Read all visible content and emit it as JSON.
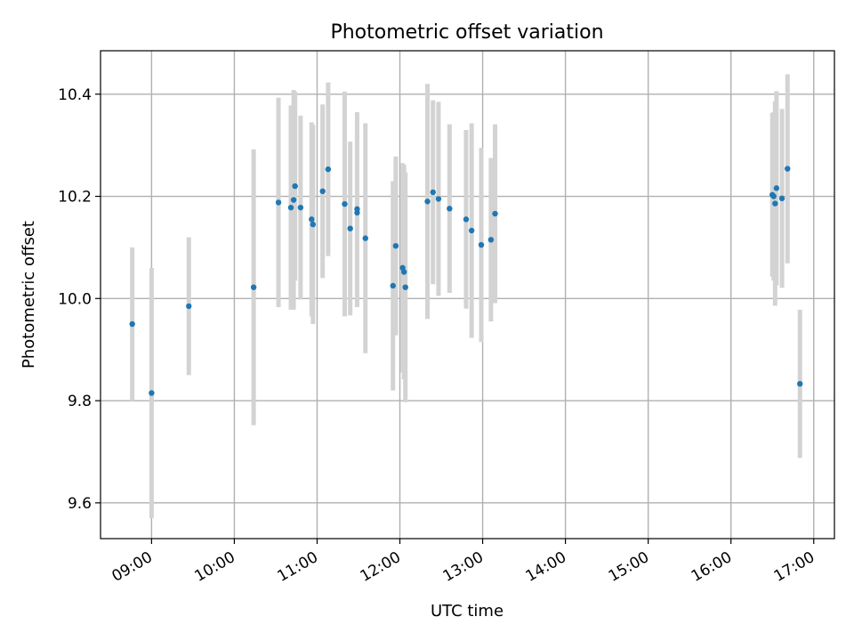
{
  "chart_data": {
    "type": "scatter",
    "title": "Photometric offset variation",
    "xlabel": "UTC time",
    "ylabel": "Photometric offset",
    "x_unit": "time of day (UTC)",
    "xlim": [
      "08:23",
      "17:15"
    ],
    "ylim": [
      9.53,
      10.485
    ],
    "x_ticks": [
      "09:00",
      "10:00",
      "11:00",
      "12:00",
      "13:00",
      "14:00",
      "15:00",
      "16:00",
      "17:00"
    ],
    "y_ticks": [
      "9.6",
      "9.8",
      "10.0",
      "10.2",
      "10.4"
    ],
    "grid": true,
    "colors": {
      "point": "#1f77b4",
      "error_bar": "#d3d3d3"
    },
    "points": [
      {
        "x": "08:46",
        "y": 9.95,
        "err": 0.15
      },
      {
        "x": "09:00",
        "y": 9.815,
        "err": 0.245
      },
      {
        "x": "09:27",
        "y": 9.985,
        "err": 0.135
      },
      {
        "x": "10:14",
        "y": 10.022,
        "err": 0.27
      },
      {
        "x": "10:32",
        "y": 10.188,
        "err": 0.205
      },
      {
        "x": "10:41",
        "y": 10.178,
        "err": 0.2
      },
      {
        "x": "10:43",
        "y": 10.193,
        "err": 0.215
      },
      {
        "x": "10:44",
        "y": 10.22,
        "err": 0.185
      },
      {
        "x": "10:48",
        "y": 10.178,
        "err": 0.18
      },
      {
        "x": "10:56",
        "y": 10.155,
        "err": 0.19
      },
      {
        "x": "10:57",
        "y": 10.145,
        "err": 0.195
      },
      {
        "x": "11:04",
        "y": 10.21,
        "err": 0.17
      },
      {
        "x": "11:08",
        "y": 10.253,
        "err": 0.17
      },
      {
        "x": "11:20",
        "y": 10.185,
        "err": 0.22
      },
      {
        "x": "11:24",
        "y": 10.137,
        "err": 0.17
      },
      {
        "x": "11:29",
        "y": 10.168,
        "err": 0.185
      },
      {
        "x": "11:29",
        "y": 10.175,
        "err": 0.19
      },
      {
        "x": "11:35",
        "y": 10.118,
        "err": 0.225
      },
      {
        "x": "11:55",
        "y": 10.025,
        "err": 0.205
      },
      {
        "x": "11:57",
        "y": 10.103,
        "err": 0.175
      },
      {
        "x": "12:02",
        "y": 10.06,
        "err": 0.205
      },
      {
        "x": "12:03",
        "y": 10.052,
        "err": 0.21
      },
      {
        "x": "12:04",
        "y": 10.022,
        "err": 0.225
      },
      {
        "x": "12:20",
        "y": 10.19,
        "err": 0.23
      },
      {
        "x": "12:24",
        "y": 10.208,
        "err": 0.18
      },
      {
        "x": "12:28",
        "y": 10.195,
        "err": 0.19
      },
      {
        "x": "12:36",
        "y": 10.176,
        "err": 0.165
      },
      {
        "x": "12:48",
        "y": 10.155,
        "err": 0.175
      },
      {
        "x": "12:52",
        "y": 10.133,
        "err": 0.21
      },
      {
        "x": "12:59",
        "y": 10.105,
        "err": 0.19
      },
      {
        "x": "13:06",
        "y": 10.115,
        "err": 0.16
      },
      {
        "x": "13:09",
        "y": 10.166,
        "err": 0.175
      },
      {
        "x": "16:30",
        "y": 10.203,
        "err": 0.16
      },
      {
        "x": "16:31",
        "y": 10.2,
        "err": 0.165
      },
      {
        "x": "16:32",
        "y": 10.186,
        "err": 0.2
      },
      {
        "x": "16:33",
        "y": 10.216,
        "err": 0.19
      },
      {
        "x": "16:37",
        "y": 10.196,
        "err": 0.175
      },
      {
        "x": "16:41",
        "y": 10.254,
        "err": 0.185
      },
      {
        "x": "16:50",
        "y": 9.833,
        "err": 0.145
      }
    ]
  }
}
